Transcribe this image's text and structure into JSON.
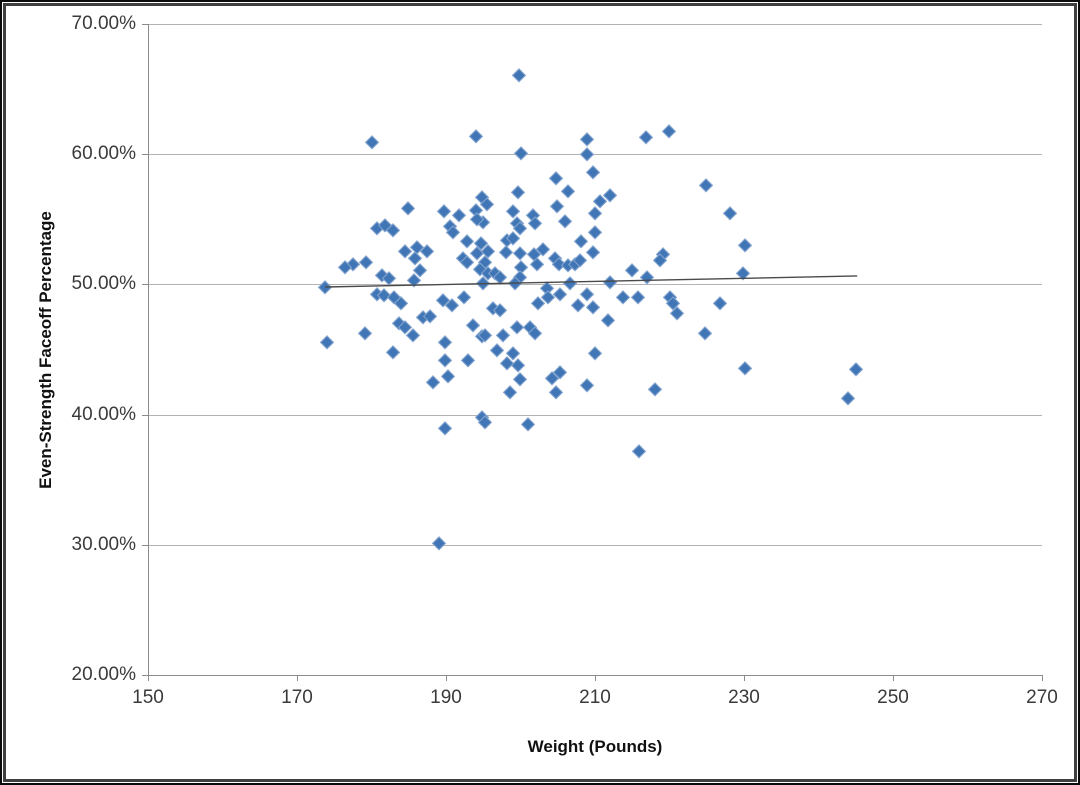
{
  "chart_data": {
    "type": "scatter",
    "xlabel": "Weight (Pounds)",
    "ylabel": "Even-Strength Faceoff Percentage",
    "xlim": [
      150,
      270
    ],
    "ylim": [
      20,
      70
    ],
    "xticks": [
      150,
      170,
      190,
      210,
      230,
      250,
      270
    ],
    "yticks": [
      20,
      30,
      40,
      50,
      60,
      70
    ],
    "ytick_labels": [
      "20.00%",
      "30.00%",
      "40.00%",
      "50.00%",
      "60.00%",
      "70.00%"
    ],
    "grid": "horizontal",
    "legend": "none",
    "marker": {
      "shape": "diamond",
      "fill": "#4176b6",
      "border": "#86a6cf"
    },
    "trendline": {
      "x1": 173.8,
      "y1": 49.8,
      "x2": 245.2,
      "y2": 50.65,
      "color": "#4a4a4a"
    },
    "series": [
      {
        "points": [
          [
            199.8,
            66.1
          ],
          [
            180.1,
            60.9
          ],
          [
            194.0,
            61.4
          ],
          [
            200.1,
            60.1
          ],
          [
            208.9,
            61.2
          ],
          [
            208.9,
            60.0
          ],
          [
            216.8,
            61.3
          ],
          [
            219.9,
            61.8
          ],
          [
            204.8,
            58.2
          ],
          [
            209.7,
            58.6
          ],
          [
            206.4,
            57.2
          ],
          [
            212.0,
            56.9
          ],
          [
            210.7,
            56.4
          ],
          [
            224.9,
            57.6
          ],
          [
            194.8,
            56.7
          ],
          [
            199.7,
            57.1
          ],
          [
            184.9,
            55.9
          ],
          [
            189.7,
            55.6
          ],
          [
            191.7,
            55.3
          ],
          [
            194.0,
            55.7
          ],
          [
            195.5,
            56.2
          ],
          [
            195.0,
            54.8
          ],
          [
            194.2,
            55.0
          ],
          [
            199.0,
            55.6
          ],
          [
            199.5,
            54.7
          ],
          [
            199.9,
            54.3
          ],
          [
            201.7,
            55.3
          ],
          [
            201.9,
            54.7
          ],
          [
            204.9,
            56.0
          ],
          [
            206.0,
            54.9
          ],
          [
            210.0,
            55.5
          ],
          [
            190.5,
            54.5
          ],
          [
            190.9,
            54.0
          ],
          [
            180.7,
            54.3
          ],
          [
            181.8,
            54.6
          ],
          [
            182.9,
            54.2
          ],
          [
            210.0,
            54.0
          ],
          [
            228.1,
            55.5
          ],
          [
            192.8,
            53.3
          ],
          [
            194.7,
            53.2
          ],
          [
            195.6,
            52.6
          ],
          [
            198.2,
            53.4
          ],
          [
            199.0,
            53.6
          ],
          [
            198.1,
            52.5
          ],
          [
            199.9,
            52.4
          ],
          [
            201.8,
            52.3
          ],
          [
            203.0,
            52.7
          ],
          [
            204.6,
            52.0
          ],
          [
            205.2,
            51.6
          ],
          [
            208.1,
            53.3
          ],
          [
            209.7,
            52.5
          ],
          [
            206.4,
            51.5
          ],
          [
            207.3,
            51.6
          ],
          [
            208.0,
            51.9
          ],
          [
            219.1,
            52.3
          ],
          [
            230.1,
            53.0
          ],
          [
            186.1,
            52.9
          ],
          [
            184.5,
            52.6
          ],
          [
            187.4,
            52.6
          ],
          [
            185.8,
            52.0
          ],
          [
            177.5,
            51.6
          ],
          [
            179.3,
            51.7
          ],
          [
            176.4,
            51.3
          ],
          [
            192.3,
            52.0
          ],
          [
            192.8,
            51.7
          ],
          [
            194.2,
            52.4
          ],
          [
            195.2,
            51.7
          ],
          [
            218.7,
            51.9
          ],
          [
            215.0,
            51.1
          ],
          [
            217.0,
            50.6
          ],
          [
            229.9,
            50.9
          ],
          [
            173.8,
            49.8
          ],
          [
            181.4,
            50.7
          ],
          [
            182.3,
            50.5
          ],
          [
            186.5,
            51.1
          ],
          [
            185.7,
            50.3
          ],
          [
            194.6,
            51.2
          ],
          [
            195.6,
            50.9
          ],
          [
            196.6,
            50.9
          ],
          [
            197.2,
            50.6
          ],
          [
            200.1,
            51.3
          ],
          [
            199.9,
            50.6
          ],
          [
            202.2,
            51.6
          ],
          [
            199.3,
            50.1
          ],
          [
            195.0,
            50.1
          ],
          [
            206.6,
            50.1
          ],
          [
            212.0,
            50.2
          ],
          [
            203.6,
            49.7
          ],
          [
            205.3,
            49.3
          ],
          [
            180.7,
            49.3
          ],
          [
            181.7,
            49.2
          ],
          [
            183.0,
            49.0
          ],
          [
            184.0,
            48.6
          ],
          [
            189.6,
            48.8
          ],
          [
            190.8,
            48.4
          ],
          [
            192.4,
            49.0
          ],
          [
            196.3,
            48.2
          ],
          [
            197.2,
            48.0
          ],
          [
            203.7,
            49.0
          ],
          [
            202.3,
            48.6
          ],
          [
            208.9,
            49.3
          ],
          [
            209.7,
            48.3
          ],
          [
            207.7,
            48.4
          ],
          [
            213.8,
            49.0
          ],
          [
            215.8,
            49.0
          ],
          [
            220.1,
            49.0
          ],
          [
            220.5,
            48.6
          ],
          [
            226.8,
            48.6
          ],
          [
            211.7,
            47.3
          ],
          [
            221.0,
            47.8
          ],
          [
            186.9,
            47.5
          ],
          [
            187.9,
            47.6
          ],
          [
            183.7,
            47.0
          ],
          [
            184.5,
            46.7
          ],
          [
            185.6,
            46.1
          ],
          [
            179.1,
            46.3
          ],
          [
            174.0,
            45.6
          ],
          [
            182.9,
            44.8
          ],
          [
            193.6,
            46.9
          ],
          [
            194.8,
            46.0
          ],
          [
            195.2,
            46.1
          ],
          [
            197.7,
            46.1
          ],
          [
            196.8,
            45.0
          ],
          [
            199.5,
            46.7
          ],
          [
            201.3,
            46.7
          ],
          [
            201.9,
            46.3
          ],
          [
            189.9,
            45.6
          ],
          [
            224.8,
            46.3
          ],
          [
            199.0,
            44.7
          ],
          [
            210.0,
            44.7
          ],
          [
            189.9,
            44.2
          ],
          [
            193.0,
            44.2
          ],
          [
            190.3,
            43.0
          ],
          [
            188.3,
            42.5
          ],
          [
            198.2,
            44.0
          ],
          [
            199.7,
            43.8
          ],
          [
            199.9,
            42.7
          ],
          [
            198.6,
            41.7
          ],
          [
            204.2,
            42.8
          ],
          [
            204.8,
            41.7
          ],
          [
            205.3,
            43.3
          ],
          [
            208.9,
            42.3
          ],
          [
            218.1,
            42.0
          ],
          [
            230.1,
            43.6
          ],
          [
            245.0,
            43.5
          ],
          [
            244.0,
            41.3
          ],
          [
            189.9,
            39.0
          ],
          [
            194.8,
            39.8
          ],
          [
            195.2,
            39.4
          ],
          [
            201.0,
            39.3
          ],
          [
            215.9,
            37.2
          ],
          [
            189.1,
            30.1
          ]
        ]
      }
    ]
  },
  "colors": {
    "gridline": "#b3b3b3",
    "axis": "#8c8c8c",
    "tick_text": "#3a3a3a",
    "title_text": "#111111",
    "background": "#ffffff"
  }
}
